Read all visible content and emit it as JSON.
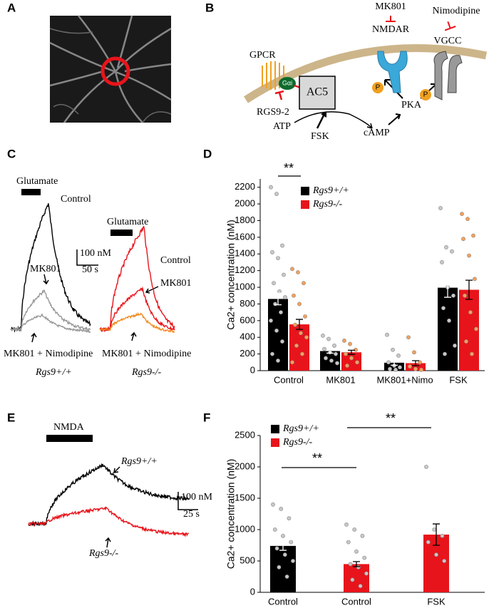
{
  "figure": {
    "panel_labels": [
      "A",
      "B",
      "C",
      "D",
      "E",
      "F"
    ],
    "diagram": {
      "gpcr": "GPCR",
      "gai": "Gαi",
      "rgs": "RGS9-2",
      "ac5": "AC5",
      "atp": "ATP",
      "fsk": "FSK",
      "camp": "cAMP",
      "pka": "PKA",
      "mk801": "MK801",
      "nmdar": "NMDAR",
      "nimodipine": "Nimodipine",
      "vgcc": "VGCC",
      "p1": "P",
      "p2": "P"
    },
    "panel_c": {
      "stimulus_left": "Glutamate",
      "stimulus_right": "Glutamate",
      "control_left": "Control",
      "control_right": "Control",
      "mk801_left": "MK801",
      "mk801_right": "MK801",
      "nimo_left": "MK801 + Nimodipine",
      "nimo_right": "MK801 + Nimodipine",
      "scale_y": "100 nM",
      "scale_x": "50 s",
      "genotype_left": "Rgs9+/+",
      "genotype_right": "Rgs9-/-"
    },
    "panel_e": {
      "stimulus": "NMDA",
      "genotype_top": "Rgs9+/+",
      "genotype_bottom": "Rgs9-/-",
      "scale_y": "100 nM",
      "scale_x": "25 s"
    }
  },
  "chart_data": [
    {
      "type": "bar",
      "ylabel": "Ca2+ concentration (nM)",
      "categories": [
        "Control",
        "MK801",
        "MK801+Nimo",
        "FSK"
      ],
      "ylim": [
        0,
        2300
      ],
      "yticks": [
        0,
        200,
        400,
        600,
        800,
        1000,
        1200,
        1400,
        1600,
        1800,
        2000,
        2200
      ],
      "legend": "upper center",
      "series": [
        {
          "name": "Rgs9+/+",
          "color": "#000000",
          "point_color": "#c8c8c8",
          "values": [
            860,
            235,
            95,
            995
          ],
          "errors": [
            70,
            25,
            30,
            115
          ],
          "points": [
            [
              2200,
              2120,
              1500,
              1420,
              1350,
              1150,
              1050,
              950,
              880,
              800,
              700,
              600,
              480,
              350,
              200,
              120
            ],
            [
              420,
              380,
              300,
              260,
              220,
              200,
              150,
              120,
              90
            ],
            [
              430,
              250,
              180,
              100,
              60,
              40,
              20,
              10
            ],
            [
              1950,
              1480,
              1430,
              1300,
              1000,
              900,
              750,
              600,
              300,
              200
            ]
          ]
        },
        {
          "name": "Rgs9-/-",
          "color": "#e8141b",
          "point_color": "#f5a05a",
          "values": [
            555,
            220,
            90,
            970
          ],
          "errors": [
            60,
            25,
            30,
            115
          ],
          "points": [
            [
              1220,
              1180,
              1050,
              900,
              800,
              650,
              550,
              450,
              400,
              300,
              200,
              100
            ],
            [
              360,
              320,
              250,
              200,
              150,
              100,
              60
            ],
            [
              400,
              220,
              100,
              50,
              20,
              10
            ],
            [
              1880,
              1820,
              1620,
              1580,
              1380,
              1100,
              900,
              700,
              500,
              350,
              200
            ]
          ]
        }
      ],
      "annotations": [
        "**"
      ]
    },
    {
      "type": "bar",
      "ylabel": "Ca2+ concentration (nM)",
      "categories": [
        "Control",
        "Control",
        "FSK"
      ],
      "ylim": [
        0,
        2500
      ],
      "yticks": [
        0,
        500,
        1000,
        1500,
        2000,
        2500
      ],
      "legend": "upper left",
      "series": [
        {
          "name": "Rgs9+/+",
          "color": "#000000",
          "point_color": "#c8c8c8",
          "values": [
            740,
            null,
            null
          ],
          "errors": [
            70,
            null,
            null
          ],
          "points": [
            [
              1400,
              1330,
              1180,
              1000,
              900,
              800,
              700,
              600,
              500,
              400,
              250
            ],
            [],
            []
          ]
        },
        {
          "name": "Rgs9-/-",
          "color": "#e8141b",
          "point_color": "#c8c8c8",
          "values": [
            null,
            450,
            920
          ],
          "errors": [
            null,
            40,
            170
          ],
          "points": [
            [],
            [
              1080,
              1000,
              900,
              800,
              650,
              550,
              450,
              400,
              300,
              200,
              100
            ],
            [
              2000,
              1000,
              900,
              800,
              600,
              500
            ]
          ]
        }
      ],
      "annotations": [
        "**",
        "**"
      ]
    }
  ]
}
